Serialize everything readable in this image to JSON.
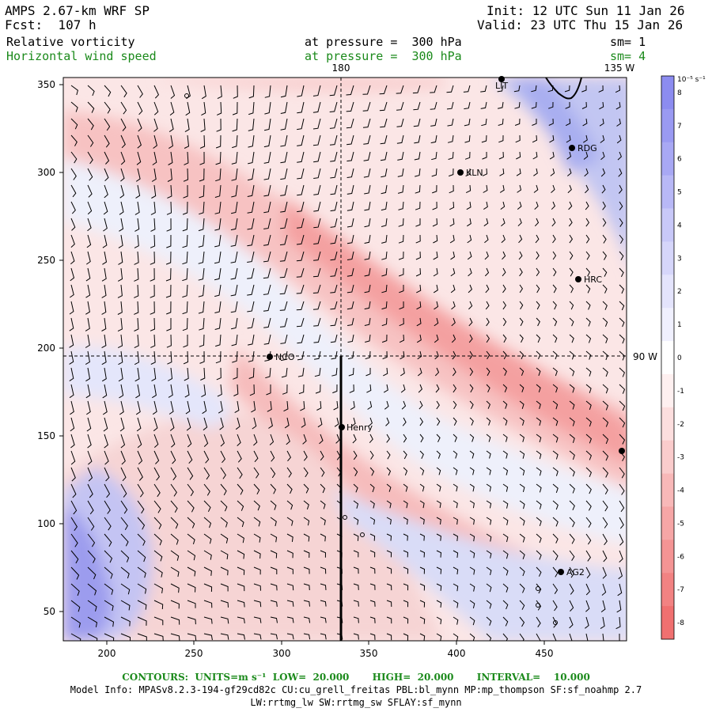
{
  "header": {
    "model": "AMPS 2.67-km WRF SP",
    "forecast": "Fcst:  107 h",
    "init": "Init: 12 UTC Sun 11 Jan 26",
    "valid": "Valid: 23 UTC Thu 15 Jan 26",
    "field1": {
      "name": "Relative vorticity",
      "level": "at pressure =  300 hPa",
      "smooth": "sm= 1"
    },
    "field2": {
      "name": "Horizontal wind speed",
      "level": "at pressure =  300 hPa",
      "smooth": "sm= 4"
    }
  },
  "map": {
    "x_ticks": [
      "200",
      "250",
      "300",
      "350",
      "400",
      "450"
    ],
    "y_ticks": [
      "350",
      "300",
      "250",
      "200",
      "150",
      "100",
      "50"
    ],
    "lon_label_180": "180",
    "lon_label_135w": "135 W",
    "lat_label_90w": "90 W",
    "stations": [
      {
        "name": "LIT"
      },
      {
        "name": "RDG"
      },
      {
        "name": "KLN"
      },
      {
        "name": "HRC"
      },
      {
        "name": "NCO"
      },
      {
        "name": "Henry"
      },
      {
        "name": "AG2"
      }
    ]
  },
  "colorbar": {
    "unit_label": "10⁻⁵ s⁻¹",
    "labels": [
      "8",
      "7",
      "6",
      "5",
      "4",
      "3",
      "2",
      "1",
      "0",
      "-1",
      "-2",
      "-3",
      "-4",
      "-5",
      "-6",
      "-7",
      "-8"
    ],
    "colors": [
      "#8c8cf0",
      "#9a9af2",
      "#a8a8f4",
      "#b8b8f6",
      "#c8c8f8",
      "#d6d6fa",
      "#e4e4fc",
      "#f0f0fe",
      "#ffffff",
      "#fef0f0",
      "#fcdede",
      "#facccc",
      "#f8b8b8",
      "#f6a6a6",
      "#f49494",
      "#f28282",
      "#f07070"
    ]
  },
  "footer": {
    "contours": "CONTOURS:  UNITS=m s⁻¹  LOW=  20.000       HIGH=  20.000       INTERVAL=    10.000",
    "model_info": "Model Info: MPASv8.2.3-194-gf29cd82c CU:cu_grell_freitas PBL:bl_mynn MP:mp_thompson SF:sf_noahmp 2.7",
    "model_info2": "LW:rrtmg_lw SW:rrtmg_sw SFLAY:sf_mynn"
  }
}
